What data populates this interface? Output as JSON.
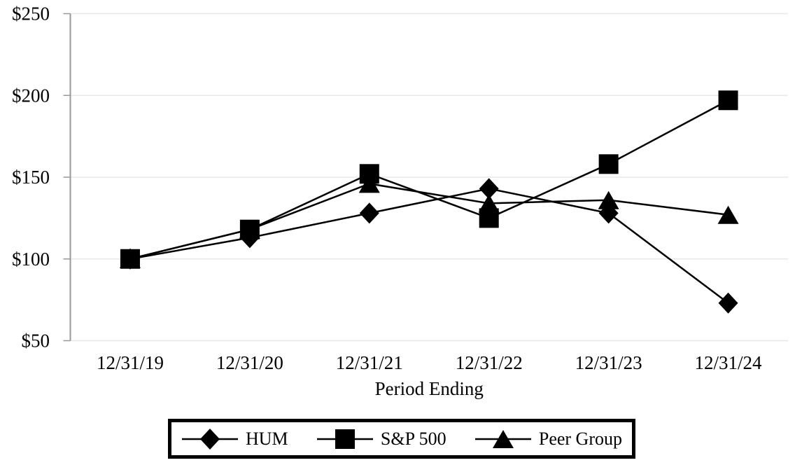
{
  "chart_data": {
    "type": "line",
    "title": "",
    "xlabel": "Period Ending",
    "ylabel": "",
    "categories": [
      "12/31/19",
      "12/31/20",
      "12/31/21",
      "12/31/22",
      "12/31/23",
      "12/31/24"
    ],
    "series": [
      {
        "name": "HUM",
        "marker": "diamond",
        "values": [
          100,
          113,
          128,
          143,
          128,
          73
        ]
      },
      {
        "name": "S&P 500",
        "marker": "square",
        "values": [
          100,
          118,
          152,
          125,
          158,
          197
        ]
      },
      {
        "name": "Peer Group",
        "marker": "triangle",
        "values": [
          100,
          118,
          146,
          134,
          136,
          127
        ]
      }
    ],
    "draw_order": [
      "Peer Group",
      "HUM",
      "S&P 500"
    ],
    "ylim": [
      50,
      250
    ],
    "y_tick_values": [
      250,
      200,
      150,
      100,
      50
    ],
    "y_ticks": [
      "$250",
      "$200",
      "$150",
      "$100",
      "$50"
    ],
    "grid": true,
    "legend_position": "bottom-center",
    "colors": {
      "series": "#000000",
      "gridline": "#e8e8e8",
      "axis": "#999999",
      "text": "#000000",
      "legend_border": "#000000"
    }
  }
}
